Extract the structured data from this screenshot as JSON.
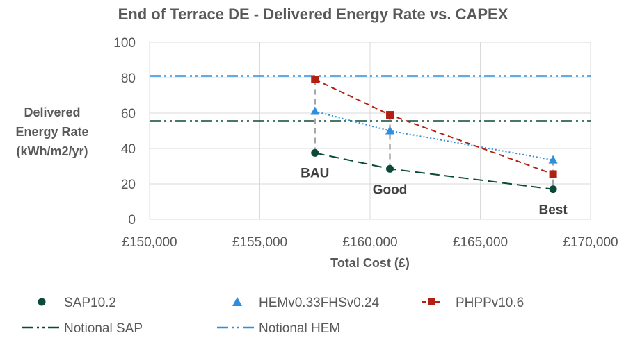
{
  "chart_data": {
    "type": "scatter",
    "title": "End of Terrace DE - Delivered Energy Rate vs. CAPEX",
    "xlabel": "Total Cost (£)",
    "ylabel": [
      "Delivered",
      "Energy Rate",
      "(kWh/m2/yr)"
    ],
    "xlim": [
      150000,
      170000
    ],
    "ylim": [
      0,
      100
    ],
    "x_ticks": [
      150000,
      155000,
      160000,
      165000,
      170000
    ],
    "x_tick_labels": [
      "£150,000",
      "£155,000",
      "£160,000",
      "£165,000",
      "£170,000"
    ],
    "y_ticks": [
      0,
      20,
      40,
      60,
      80,
      100
    ],
    "y_tick_labels": [
      "0",
      "20",
      "40",
      "60",
      "80",
      "100"
    ],
    "grid": true,
    "legend_position": "bottom",
    "series": [
      {
        "name": "SAP10.2",
        "marker": "circle",
        "color": "#0b4a3a",
        "line": "long-dash",
        "x": [
          157500,
          160900,
          168300
        ],
        "y": [
          37.5,
          28.5,
          17
        ]
      },
      {
        "name": "HEMv0.33FHSv0.24",
        "marker": "triangle",
        "color": "#2f8fdc",
        "line": "dotted",
        "x": [
          157500,
          160900,
          168300
        ],
        "y": [
          61,
          50,
          33.5
        ]
      },
      {
        "name": "PHPPv10.6",
        "marker": "square",
        "color": "#b22014",
        "line": "dashed",
        "x": [
          157500,
          160900,
          168300
        ],
        "y": [
          79,
          59,
          25.5
        ]
      }
    ],
    "reference_lines": [
      {
        "name": "Notional SAP",
        "y": 55.5,
        "color": "#0b4a3a",
        "style": "dash-dot-dot"
      },
      {
        "name": "Notional HEM",
        "y": 81,
        "color": "#2f8fdc",
        "style": "dash-dot-dot"
      }
    ],
    "annotations": [
      {
        "text": "BAU",
        "x": 157500,
        "y": 37.5
      },
      {
        "text": "Good",
        "x": 160900,
        "y": 28.5
      },
      {
        "text": "Best",
        "x": 168300,
        "y": 17
      }
    ]
  }
}
